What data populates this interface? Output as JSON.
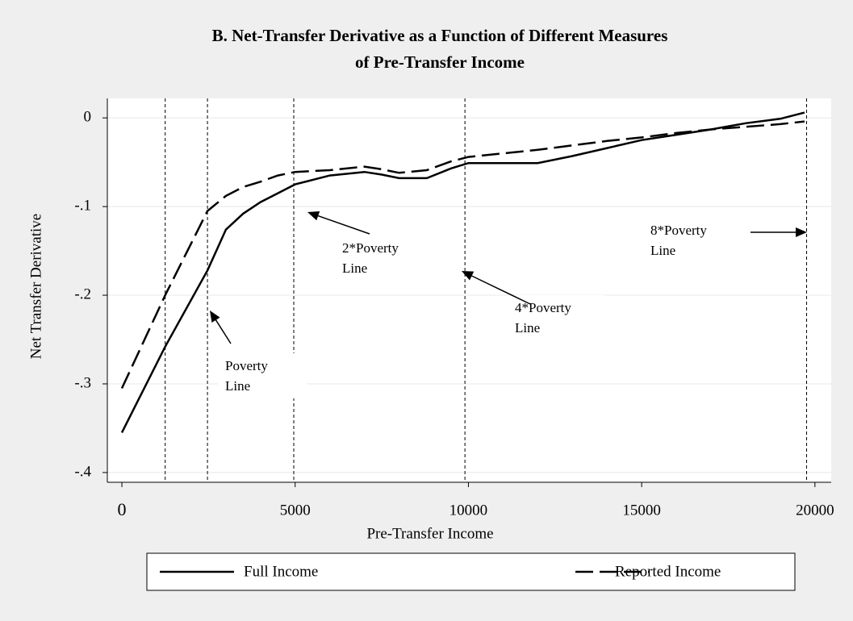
{
  "chart_data": {
    "type": "line",
    "title": "B. Net-Transfer Derivative as a Function of Different Measures",
    "subtitle": "of Pre-Transfer Income",
    "x_label": "Pre-Transfer Income",
    "y_label": "Net Transfer Derivative",
    "x": [
      0,
      1250,
      2470,
      3000,
      3500,
      4000,
      4500,
      5000,
      6000,
      7000,
      7500,
      8000,
      8800,
      9500,
      10000,
      12000,
      13000,
      14000,
      15000,
      16000,
      17000,
      18000,
      19000,
      19700
    ],
    "series": [
      {
        "name": "Full Income",
        "color": "#000000",
        "style": "solid",
        "values": [
          -0.355,
          -0.258,
          -0.172,
          -0.126,
          -0.108,
          -0.095,
          -0.085,
          -0.075,
          -0.065,
          -0.061,
          -0.064,
          -0.068,
          -0.068,
          -0.057,
          -0.051,
          -0.051,
          -0.043,
          -0.034,
          -0.025,
          -0.019,
          -0.013,
          -0.006,
          -0.001,
          0.006
        ]
      },
      {
        "name": "Reported Income",
        "color": "#000000",
        "style": "dashed",
        "values": [
          -0.305,
          -0.2,
          -0.105,
          -0.088,
          -0.078,
          -0.072,
          -0.065,
          -0.061,
          -0.059,
          -0.055,
          -0.058,
          -0.062,
          -0.059,
          -0.049,
          -0.044,
          -0.036,
          -0.031,
          -0.026,
          -0.022,
          -0.017,
          -0.013,
          -0.01,
          -0.007,
          -0.004
        ]
      }
    ],
    "vlines": [
      1250,
      2470,
      4960,
      9900,
      19760
    ],
    "annotations": [
      [
        "Poverty",
        "Line"
      ],
      [
        "2*Poverty",
        "Line"
      ],
      [
        "4*Poverty",
        "Line"
      ],
      [
        "8*Poverty",
        "Line"
      ]
    ],
    "xlim": [
      -420,
      20470
    ],
    "ylim": [
      -0.411,
      0.022
    ],
    "xticks": [
      0,
      5000,
      10000,
      15000,
      20000
    ],
    "yticks": [
      0,
      {
        "value": -0.1,
        "label": "-.1"
      },
      {
        "value": -0.2,
        "label": "-.2"
      },
      {
        "value": -0.3,
        "label": "-.3"
      },
      {
        "value": -0.4,
        "label": "-.4"
      }
    ],
    "grid": true
  }
}
